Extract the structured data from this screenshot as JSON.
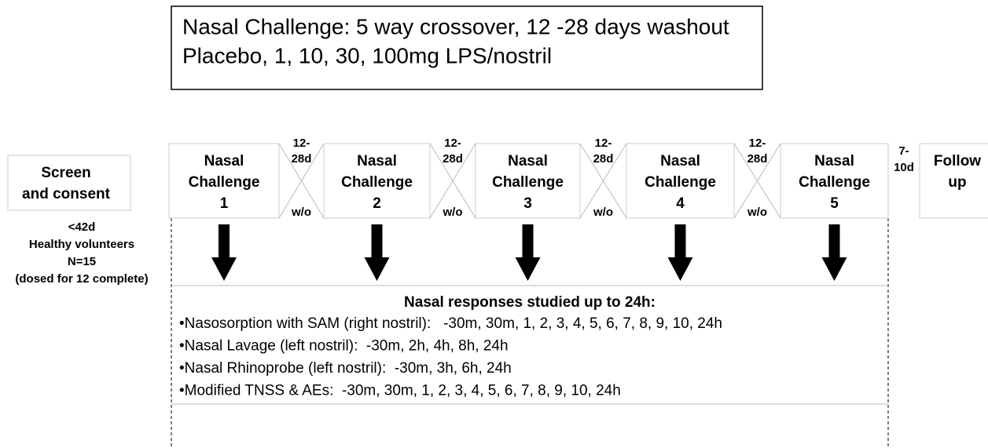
{
  "header": {
    "lines": [
      "Nasal Challenge: 5 way crossover, 12 -28 days washout",
      "Placebo, 1, 10, 30, 100mg LPS/nostril"
    ]
  },
  "screen": {
    "lines": [
      "Screen",
      "and consent"
    ],
    "notes": [
      "<42d",
      "Healthy volunteers",
      "N=15",
      "(dosed for 12 complete)"
    ]
  },
  "challenges": [
    {
      "lines": [
        "Nasal",
        "Challenge",
        "1"
      ]
    },
    {
      "lines": [
        "Nasal",
        "Challenge",
        "2"
      ]
    },
    {
      "lines": [
        "Nasal",
        "Challenge",
        "3"
      ]
    },
    {
      "lines": [
        "Nasal",
        "Challenge",
        "4"
      ]
    },
    {
      "lines": [
        "Nasal",
        "Challenge",
        "5"
      ]
    }
  ],
  "washouts": [
    {
      "top": [
        "12-",
        "28d"
      ],
      "bottom": "w/o"
    },
    {
      "top": [
        "12-",
        "28d"
      ],
      "bottom": "w/o"
    },
    {
      "top": [
        "12-",
        "28d"
      ],
      "bottom": "w/o"
    },
    {
      "top": [
        "12-",
        "28d"
      ],
      "bottom": "w/o"
    }
  ],
  "followup_gap": [
    "7-",
    "10d"
  ],
  "followup": {
    "lines": [
      "Follow",
      "up"
    ]
  },
  "responses": {
    "title": "Nasal  responses studied up to 24h:",
    "items": [
      "•Nasosorption with SAM (right nostril):   -30m, 30m, 1, 2, 3, 4, 5, 6, 7, 8, 9, 10, 24h",
      "•Nasal Lavage (left nostril):  -30m, 2h, 4h, 8h, 24h",
      "•Nasal Rhinoprobe (left nostril):  -30m, 3h, 6h, 24h",
      "•Modified TNSS & AEs:  -30m, 30m, 1, 2, 3, 4, 5, 6, 7, 8, 9, 10, 24h"
    ]
  }
}
